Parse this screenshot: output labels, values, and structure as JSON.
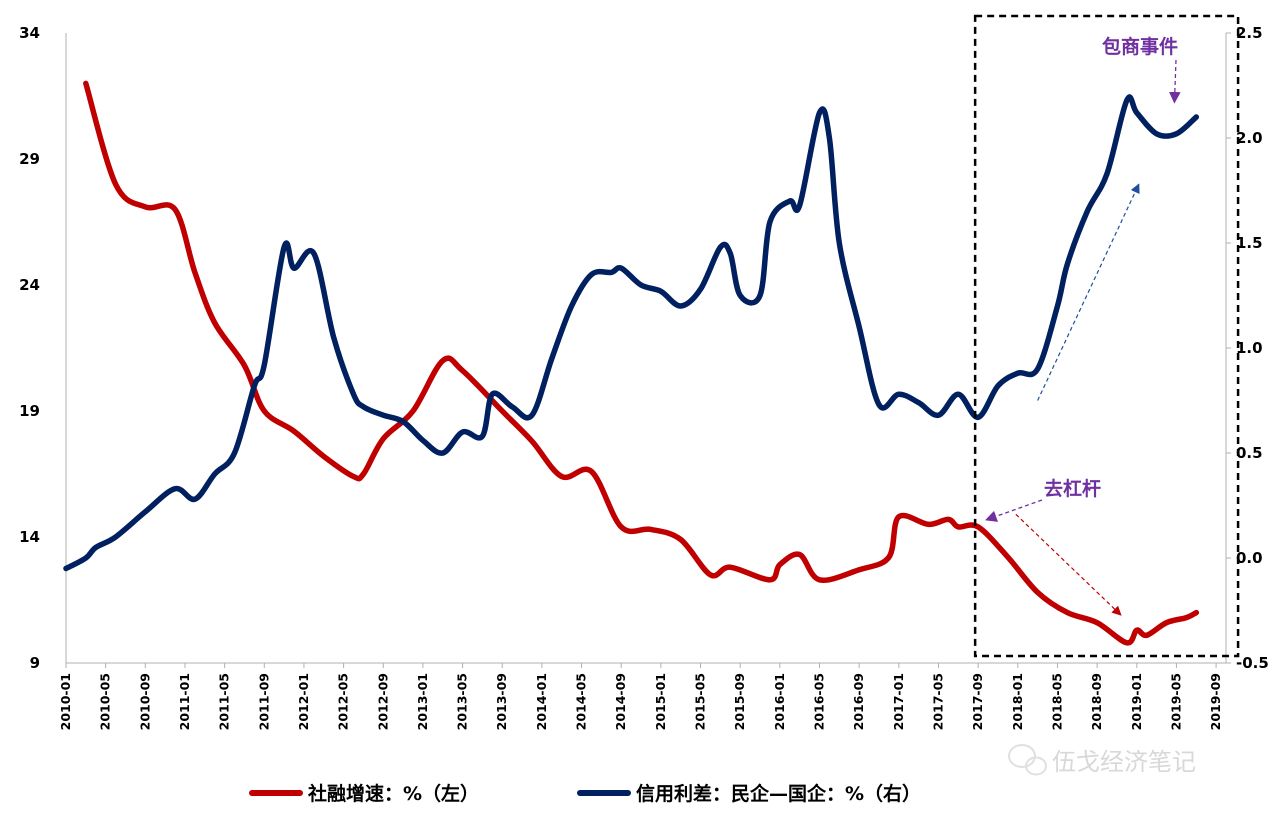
{
  "chart_data": {
    "type": "line",
    "y_left": {
      "ticks": [
        "34",
        "29",
        "24",
        "19",
        "14",
        "9"
      ],
      "ylim": [
        9,
        34
      ]
    },
    "y_right": {
      "ticks": [
        "2.5",
        "2.0",
        "1.5",
        "1.0",
        "0.5",
        "0.0",
        "-0.5"
      ],
      "ylim": [
        -0.5,
        2.5
      ]
    },
    "x_ticks": [
      "2010-01",
      "2010-05",
      "2010-09",
      "2011-01",
      "2011-05",
      "2011-09",
      "2012-01",
      "2012-05",
      "2012-09",
      "2013-01",
      "2013-05",
      "2013-09",
      "2014-01",
      "2014-05",
      "2014-09",
      "2015-01",
      "2015-05",
      "2015-09",
      "2016-01",
      "2016-05",
      "2016-09",
      "2017-01",
      "2017-05",
      "2017-09",
      "2018-01",
      "2018-05",
      "2018-09",
      "2019-01",
      "2019-05",
      "2019-09"
    ],
    "series": [
      {
        "name": "社融增速：%（左）",
        "axis": "left",
        "color": "#c00000",
        "points": [
          [
            "2010-03",
            32.0
          ],
          [
            "2010-06",
            28.0
          ],
          [
            "2010-09",
            27.1
          ],
          [
            "2010-12",
            27.0
          ],
          [
            "2011-02",
            24.5
          ],
          [
            "2011-04",
            22.5
          ],
          [
            "2011-07",
            20.8
          ],
          [
            "2011-09",
            19.0
          ],
          [
            "2011-12",
            18.2
          ],
          [
            "2012-03",
            17.2
          ],
          [
            "2012-06",
            16.4
          ],
          [
            "2012-07",
            16.5
          ],
          [
            "2012-09",
            17.9
          ],
          [
            "2012-12",
            19.0
          ],
          [
            "2013-03",
            21.0
          ],
          [
            "2013-05",
            20.6
          ],
          [
            "2013-09",
            19.0
          ],
          [
            "2013-12",
            17.8
          ],
          [
            "2014-03",
            16.4
          ],
          [
            "2014-06",
            16.6
          ],
          [
            "2014-09",
            14.4
          ],
          [
            "2014-12",
            14.3
          ],
          [
            "2015-03",
            13.9
          ],
          [
            "2015-06",
            12.5
          ],
          [
            "2015-08",
            12.8
          ],
          [
            "2015-12",
            12.3
          ],
          [
            "2016-01",
            12.9
          ],
          [
            "2016-03",
            13.3
          ],
          [
            "2016-05",
            12.3
          ],
          [
            "2016-09",
            12.7
          ],
          [
            "2016-12",
            13.2
          ],
          [
            "2017-01",
            14.8
          ],
          [
            "2017-04",
            14.5
          ],
          [
            "2017-06",
            14.7
          ],
          [
            "2017-07",
            14.4
          ],
          [
            "2017-09",
            14.4
          ],
          [
            "2017-12",
            13.2
          ],
          [
            "2018-03",
            11.8
          ],
          [
            "2018-06",
            11.0
          ],
          [
            "2018-09",
            10.6
          ],
          [
            "2018-12",
            9.8
          ],
          [
            "2019-01",
            10.3
          ],
          [
            "2019-02",
            10.1
          ],
          [
            "2019-04",
            10.6
          ],
          [
            "2019-06",
            10.8
          ],
          [
            "2019-07",
            11.0
          ]
        ]
      },
      {
        "name": "信用利差：民企—国企：%（右）",
        "axis": "right",
        "color": "#002060",
        "points": [
          [
            "2010-01",
            -0.05
          ],
          [
            "2010-03",
            0.0
          ],
          [
            "2010-04",
            0.05
          ],
          [
            "2010-06",
            0.1
          ],
          [
            "2010-09",
            0.22
          ],
          [
            "2010-12",
            0.33
          ],
          [
            "2011-02",
            0.28
          ],
          [
            "2011-04",
            0.4
          ],
          [
            "2011-06",
            0.5
          ],
          [
            "2011-08",
            0.82
          ],
          [
            "2011-09",
            0.92
          ],
          [
            "2011-11",
            1.48
          ],
          [
            "2011-12",
            1.38
          ],
          [
            "2012-02",
            1.45
          ],
          [
            "2012-04",
            1.05
          ],
          [
            "2012-06",
            0.78
          ],
          [
            "2012-07",
            0.72
          ],
          [
            "2012-09",
            0.68
          ],
          [
            "2012-11",
            0.65
          ],
          [
            "2013-01",
            0.56
          ],
          [
            "2013-03",
            0.5
          ],
          [
            "2013-05",
            0.6
          ],
          [
            "2013-07",
            0.58
          ],
          [
            "2013-08",
            0.78
          ],
          [
            "2013-10",
            0.72
          ],
          [
            "2013-12",
            0.68
          ],
          [
            "2014-02",
            0.95
          ],
          [
            "2014-04",
            1.2
          ],
          [
            "2014-06",
            1.35
          ],
          [
            "2014-08",
            1.36
          ],
          [
            "2014-09",
            1.38
          ],
          [
            "2014-11",
            1.3
          ],
          [
            "2015-01",
            1.27
          ],
          [
            "2015-03",
            1.2
          ],
          [
            "2015-05",
            1.28
          ],
          [
            "2015-07",
            1.48
          ],
          [
            "2015-08",
            1.45
          ],
          [
            "2015-09",
            1.25
          ],
          [
            "2015-11",
            1.25
          ],
          [
            "2015-12",
            1.6
          ],
          [
            "2016-02",
            1.7
          ],
          [
            "2016-03",
            1.68
          ],
          [
            "2016-05",
            2.12
          ],
          [
            "2016-06",
            2.0
          ],
          [
            "2016-07",
            1.5
          ],
          [
            "2016-09",
            1.1
          ],
          [
            "2016-11",
            0.73
          ],
          [
            "2017-01",
            0.78
          ],
          [
            "2017-03",
            0.74
          ],
          [
            "2017-05",
            0.68
          ],
          [
            "2017-07",
            0.78
          ],
          [
            "2017-09",
            0.67
          ],
          [
            "2017-11",
            0.82
          ],
          [
            "2018-01",
            0.88
          ],
          [
            "2018-03",
            0.9
          ],
          [
            "2018-05",
            1.2
          ],
          [
            "2018-06",
            1.4
          ],
          [
            "2018-08",
            1.65
          ],
          [
            "2018-10",
            1.83
          ],
          [
            "2018-12",
            2.18
          ],
          [
            "2019-01",
            2.12
          ],
          [
            "2019-03",
            2.02
          ],
          [
            "2019-05",
            2.02
          ],
          [
            "2019-07",
            2.1
          ]
        ]
      }
    ],
    "annotations": [
      {
        "text": "包商事件"
      },
      {
        "text": "去杠杆"
      }
    ],
    "highlight_box": {
      "from": "2017-09",
      "to": "2019-09",
      "style": "dashed"
    },
    "legend": {
      "position": "bottom-center"
    },
    "grid": false,
    "watermark": "伍戈经济笔记"
  }
}
